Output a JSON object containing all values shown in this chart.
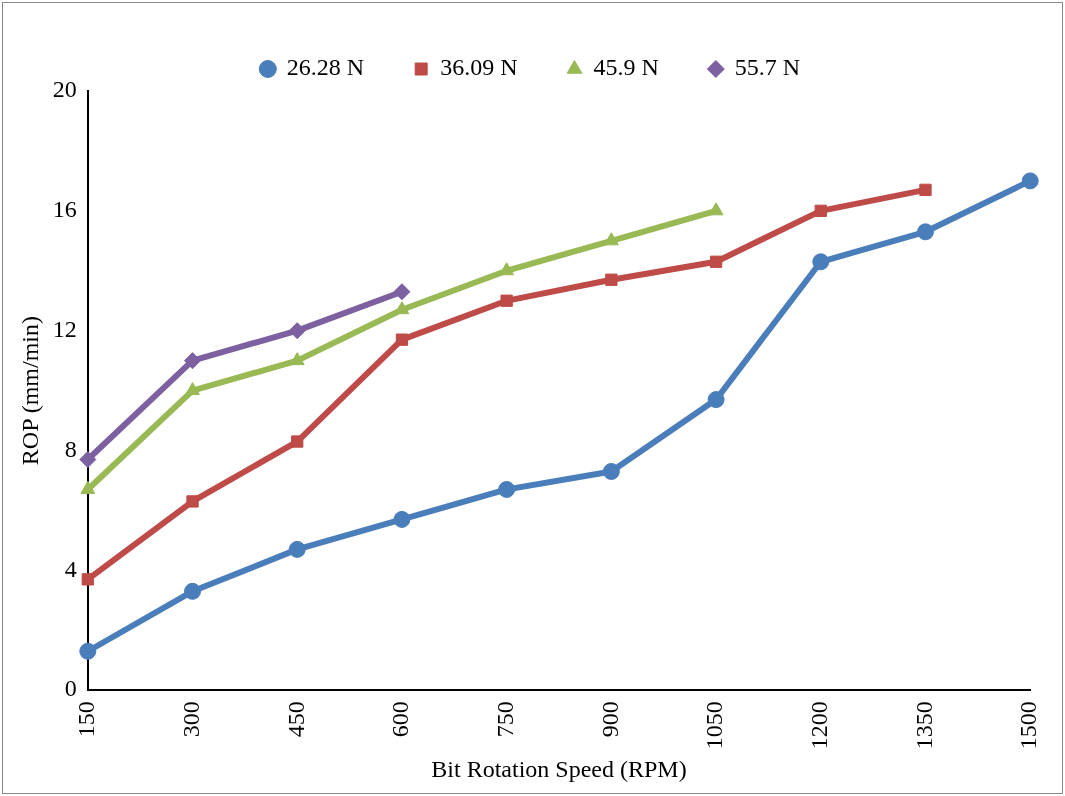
{
  "chart_data": {
    "type": "line",
    "xlabel": "Bit Rotation Speed (RPM)",
    "ylabel": "ROP (mm/min)",
    "categories": [
      "150",
      "300",
      "450",
      "600",
      "750",
      "900",
      "1050",
      "1200",
      "1350",
      "1500"
    ],
    "series": [
      {
        "name": "26.28 N",
        "color": "#4a7ebb",
        "marker": "circle",
        "values": [
          1.3,
          3.3,
          4.7,
          5.7,
          6.7,
          7.3,
          9.7,
          14.3,
          15.3,
          17
        ]
      },
      {
        "name": "36.09 N",
        "color": "#be4b48",
        "marker": "square",
        "values": [
          3.7,
          6.3,
          8.3,
          11.7,
          13,
          13.7,
          14.3,
          16,
          16.7,
          null
        ]
      },
      {
        "name": "45.9 N",
        "color": "#98b954",
        "marker": "triangle",
        "values": [
          6.7,
          10,
          11,
          12.7,
          14,
          15,
          16,
          null,
          null,
          null
        ]
      },
      {
        "name": "55.7 N",
        "color": "#7d60a0",
        "marker": "diamond",
        "values": [
          7.7,
          11,
          12,
          13.3,
          null,
          null,
          null,
          null,
          null,
          null
        ]
      }
    ],
    "ylim": [
      0,
      20
    ],
    "yticks": [
      0,
      4,
      8,
      12,
      16,
      20
    ],
    "grid": false,
    "legend": "top",
    "line_style": "solid"
  }
}
